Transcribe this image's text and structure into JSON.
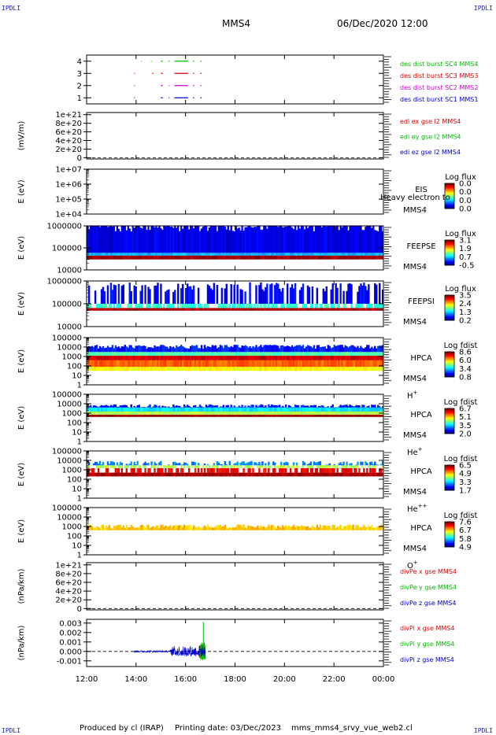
{
  "header": {
    "corner_label": "IPDLI",
    "spacecraft": "MMS4",
    "datetime": "06/Dec/2020 12:00"
  },
  "footer": {
    "produced_by": "Produced by cl (IRAP)",
    "printing_date": "Printing date: 03/Dec/2023",
    "script_name": "mms_mms4_srvy_vue_web2.cl"
  },
  "colors": {
    "mms1": "#0000cc",
    "mms2": "#cc00cc",
    "mms3": "#dd0000",
    "mms4": "#00bb00",
    "x_component": "#dd0000",
    "y_component": "#00bb00",
    "z_component": "#0000cc"
  },
  "chart_data": {
    "type": "multi-panel",
    "x_axis": {
      "ticks": [
        "12:00",
        "14:00",
        "16:00",
        "18:00",
        "20:00",
        "22:00",
        "00:00"
      ],
      "range": [
        "12:00",
        "00:00"
      ]
    },
    "panels": [
      {
        "id": "burst",
        "type": "line",
        "ylabel": "",
        "y_ticks": [
          "1",
          "2",
          "3",
          "4"
        ],
        "ylim": [
          0.5,
          4.5
        ],
        "series": [
          {
            "name": "des dist burst SC1 MMS1",
            "color": "#0000cc",
            "level": 1,
            "segments": [
              [
                13.92,
                13.95
              ],
              [
                15.0,
                15.08
              ],
              [
                15.32,
                15.35
              ],
              [
                15.55,
                16.1
              ],
              [
                16.3,
                16.35
              ],
              [
                16.6,
                16.65
              ]
            ]
          },
          {
            "name": "des dist burst SC2 MMS2",
            "color": "#cc00cc",
            "level": 2,
            "segments": [
              [
                13.92,
                13.95
              ],
              [
                15.0,
                15.08
              ],
              [
                15.32,
                15.35
              ],
              [
                15.55,
                16.1
              ],
              [
                16.3,
                16.35
              ],
              [
                16.6,
                16.65
              ]
            ]
          },
          {
            "name": "des dist burst SC3 MMS3",
            "color": "#dd0000",
            "level": 3,
            "segments": [
              [
                13.92,
                13.95
              ],
              [
                14.65,
                14.7
              ],
              [
                15.0,
                15.08
              ],
              [
                15.55,
                16.1
              ],
              [
                16.3,
                16.35
              ],
              [
                16.6,
                16.65
              ]
            ]
          },
          {
            "name": "des dist burst SC4 MMS4",
            "color": "#00bb00",
            "level": 4,
            "segments": [
              [
                14.2,
                14.23
              ],
              [
                14.6,
                14.63
              ],
              [
                15.0,
                15.08
              ],
              [
                15.3,
                15.35
              ],
              [
                15.55,
                16.1
              ],
              [
                16.3,
                16.35
              ],
              [
                16.6,
                16.65
              ]
            ]
          }
        ]
      },
      {
        "id": "edi",
        "type": "line",
        "ylabel": "(mV/m)",
        "y_ticks": [
          "0",
          "2e+20",
          "4e+20",
          "6e+20",
          "8e+20",
          "1e+21"
        ],
        "ylim": [
          -3e+19,
          1.05e+21
        ],
        "zero_line": true,
        "series": [
          {
            "name": "edi ex gse l2 MMS4",
            "color": "#dd0000"
          },
          {
            "name": "edi ey gse l2 MMS4",
            "color": "#00bb00"
          },
          {
            "name": "edi ez gse l2 MMS4",
            "color": "#0000cc"
          }
        ]
      },
      {
        "id": "eis",
        "type": "heatmap",
        "ylabel": "E (eV)",
        "y_ticks": [
          "1e+04",
          "1e+05",
          "1e+06",
          "1e+07"
        ],
        "log_y": true,
        "ylim": [
          10000,
          10000000
        ],
        "instrument": "EIS",
        "sc": "MMS4",
        "note": "Heavy electron to",
        "colorbar": {
          "title": "Log flux",
          "ticks": [
            "0.0",
            "0.0",
            "0.0",
            "0.0"
          ]
        }
      },
      {
        "id": "feepse",
        "type": "heatmap",
        "ylabel": "E (eV)",
        "y_ticks": [
          "10000",
          "100000",
          "1000000"
        ],
        "log_y": true,
        "ylim": [
          10000,
          1000000
        ],
        "instrument": "FEEPSE",
        "sc": "MMS4",
        "colorbar": {
          "title": "Log flux",
          "ticks": [
            "3.1",
            "1.9",
            "0.7",
            "-0.5"
          ]
        }
      },
      {
        "id": "feepsi",
        "type": "heatmap",
        "ylabel": "E (eV)",
        "y_ticks": [
          "10000",
          "100000",
          "1000000"
        ],
        "log_y": true,
        "ylim": [
          10000,
          1000000
        ],
        "instrument": "FEEPSI",
        "sc": "MMS4",
        "colorbar": {
          "title": "Log flux",
          "ticks": [
            "3.5",
            "2.4",
            "1.3",
            "0.2"
          ]
        }
      },
      {
        "id": "hpca_h",
        "type": "heatmap",
        "ylabel": "E (eV)",
        "y_ticks": [
          "1",
          "10",
          "100",
          "1000",
          "10000",
          "100000"
        ],
        "log_y": true,
        "ylim": [
          1,
          100000
        ],
        "instrument": "HPCA",
        "sc": "MMS4",
        "species": "H",
        "charge": "+",
        "colorbar": {
          "title": "Log fdist",
          "ticks": [
            "8.6",
            "6.0",
            "3.4",
            "0.8"
          ]
        }
      },
      {
        "id": "hpca_he",
        "type": "heatmap",
        "ylabel": "E (eV)",
        "y_ticks": [
          "1",
          "10",
          "100",
          "1000",
          "10000",
          "100000"
        ],
        "log_y": true,
        "ylim": [
          1,
          100000
        ],
        "instrument": "HPCA",
        "sc": "MMS4",
        "species": "He",
        "charge": "+",
        "colorbar": {
          "title": "Log fdist",
          "ticks": [
            "6.7",
            "5.1",
            "3.5",
            "2.0"
          ]
        }
      },
      {
        "id": "hpca_he2",
        "type": "heatmap",
        "ylabel": "E (eV)",
        "y_ticks": [
          "1",
          "10",
          "100",
          "1000",
          "10000",
          "100000"
        ],
        "log_y": true,
        "ylim": [
          1,
          100000
        ],
        "instrument": "HPCA",
        "sc": "MMS4",
        "species": "He",
        "charge": "++",
        "colorbar": {
          "title": "Log fdist",
          "ticks": [
            "6.5",
            "4.9",
            "3.3",
            "1.7"
          ]
        }
      },
      {
        "id": "hpca_o",
        "type": "heatmap",
        "ylabel": "E (eV)",
        "y_ticks": [
          "1",
          "10",
          "100",
          "1000",
          "10000",
          "100000"
        ],
        "log_y": true,
        "ylim": [
          1,
          100000
        ],
        "instrument": "HPCA",
        "sc": "MMS4",
        "species": "O",
        "charge": "+",
        "colorbar": {
          "title": "Log fdist",
          "ticks": [
            "7.6",
            "6.7",
            "5.8",
            "4.9"
          ]
        }
      },
      {
        "id": "divpe",
        "type": "line",
        "ylabel": "(nPa/km)",
        "y_ticks": [
          "0",
          "2e+20",
          "4e+20",
          "6e+20",
          "8e+20",
          "1e+21"
        ],
        "ylim": [
          -3e+19,
          1.05e+21
        ],
        "zero_line": true,
        "series": [
          {
            "name": "divPe x gse MMS4",
            "color": "#dd0000"
          },
          {
            "name": "divPe y gse MMS4",
            "color": "#00bb00"
          },
          {
            "name": "divPe z gse MMS4",
            "color": "#0000cc"
          }
        ]
      },
      {
        "id": "divpi",
        "type": "line",
        "ylabel": "(nPa/km)",
        "y_ticks": [
          "-0.001",
          "0.000",
          "0.001",
          "0.002",
          "0.003"
        ],
        "ylim": [
          -0.0016,
          0.0034
        ],
        "zero_line": true,
        "series": [
          {
            "name": "divPi x gse MMS4",
            "color": "#dd0000",
            "extent": [
              16.55,
              16.8
            ],
            "amplitude": 0.0006
          },
          {
            "name": "divPi y gse MMS4",
            "color": "#00bb00",
            "extent": [
              16.6,
              16.8
            ],
            "amplitude": 0.0008,
            "spike": {
              "x": 16.72,
              "y": 0.0031
            }
          },
          {
            "name": "divPi z gse MMS4",
            "color": "#0000cc",
            "extent": [
              13.9,
              16.8
            ],
            "amplitude": 0.0005
          }
        ]
      }
    ]
  }
}
